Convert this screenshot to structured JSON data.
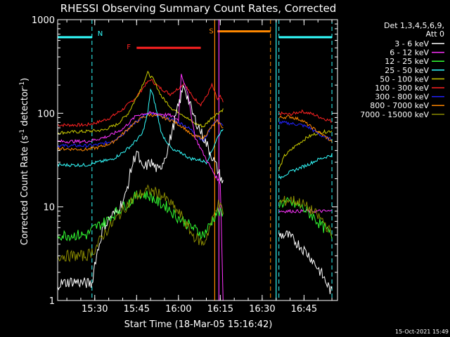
{
  "chart_data": {
    "type": "line",
    "title": "RHESSI Observing Summary Count Rates, Corrected",
    "xlabel": "Start Time (18-Mar-05 15:16:42)",
    "ylabel_main": "Corrected Count Rate (s",
    "ylabel_sup1": "-1",
    "ylabel_mid": " detector",
    "ylabel_sup2": "-1",
    "ylabel_end": ")",
    "yscale": "log",
    "ylim": [
      1,
      1000
    ],
    "xlim": [
      "15:16:42",
      "16:57:00"
    ],
    "x_ticks": [
      "15:30",
      "15:45",
      "16:00",
      "16:15",
      "16:30",
      "16:45"
    ],
    "y_ticks": [
      "1",
      "10",
      "100",
      "1000"
    ],
    "legend_title": [
      "Det 1,3,4,5,6,9,",
      "Att 0"
    ],
    "legend_position": "outside-right",
    "legend": [
      {
        "label": "3 - 6 keV",
        "color": "#ffffff"
      },
      {
        "label": "6 - 12 keV",
        "color": "#ff33ff"
      },
      {
        "label": "12 - 25 keV",
        "color": "#33ff33"
      },
      {
        "label": "25 - 50 keV",
        "color": "#33ffff"
      },
      {
        "label": "50 - 100 keV",
        "color": "#cccc00"
      },
      {
        "label": "100 - 300 keV",
        "color": "#ff2222"
      },
      {
        "label": "300 - 800 keV",
        "color": "#2222ff"
      },
      {
        "label": "800 - 7000 keV",
        "color": "#ff8800"
      },
      {
        "label": "7000 - 15000 keV",
        "color": "#888800"
      }
    ],
    "series": [
      {
        "color": "#ff2222",
        "points": [
          [
            "15:16:42",
            75
          ],
          [
            "15:27",
            75
          ],
          [
            "15:31",
            80
          ],
          [
            "15:35",
            88
          ],
          [
            "15:40",
            110
          ],
          [
            "15:45",
            150
          ],
          [
            "15:48",
            200
          ],
          [
            "15:50",
            230
          ],
          [
            "15:53",
            190
          ],
          [
            "15:57",
            160
          ],
          [
            "16:00",
            185
          ],
          [
            "16:02",
            210
          ],
          [
            "16:05",
            150
          ],
          [
            "16:08",
            125
          ],
          [
            "16:10",
            150
          ],
          [
            "16:12",
            200
          ],
          [
            "16:14",
            140
          ],
          [
            "16:15",
            150
          ],
          [
            "16:16",
            130
          ]
        ],
        "gap_after": true,
        "points2": [
          [
            "16:36",
            100
          ],
          [
            "16:40",
            97
          ],
          [
            "16:44",
            105
          ],
          [
            "16:48",
            98
          ],
          [
            "16:52",
            88
          ],
          [
            "16:55",
            82
          ]
        ]
      },
      {
        "color": "#cccc00",
        "points": [
          [
            "15:16:42",
            62
          ],
          [
            "15:27",
            64
          ],
          [
            "15:33",
            66
          ],
          [
            "15:38",
            76
          ],
          [
            "15:42",
            100
          ],
          [
            "15:46",
            170
          ],
          [
            "15:49",
            270
          ],
          [
            "15:51",
            230
          ],
          [
            "15:54",
            150
          ],
          [
            "15:58",
            110
          ],
          [
            "16:01",
            100
          ],
          [
            "16:05",
            80
          ],
          [
            "16:09",
            72
          ],
          [
            "16:12",
            90
          ],
          [
            "16:14",
            100
          ],
          [
            "16:16",
            110
          ]
        ],
        "gap_after": true,
        "points2": [
          [
            "16:36",
            25
          ],
          [
            "16:38",
            35
          ],
          [
            "16:42",
            45
          ],
          [
            "16:46",
            55
          ],
          [
            "16:50",
            62
          ],
          [
            "16:55",
            65
          ]
        ]
      },
      {
        "color": "#2222ff",
        "points": [
          [
            "15:16:42",
            45
          ],
          [
            "15:27",
            45
          ],
          [
            "15:31",
            46
          ],
          [
            "15:36",
            50
          ],
          [
            "15:40",
            60
          ],
          [
            "15:43",
            73
          ],
          [
            "15:47",
            92
          ],
          [
            "15:50",
            99
          ],
          [
            "15:54",
            93
          ],
          [
            "15:58",
            85
          ],
          [
            "16:02",
            75
          ],
          [
            "16:05",
            65
          ],
          [
            "16:09",
            50
          ],
          [
            "16:12",
            75
          ],
          [
            "16:14",
            85
          ],
          [
            "16:16",
            72
          ]
        ],
        "gap_after": true,
        "points2": [
          [
            "16:36",
            80
          ],
          [
            "16:40",
            78
          ],
          [
            "16:44",
            75
          ],
          [
            "16:47",
            70
          ],
          [
            "16:51",
            58
          ],
          [
            "16:55",
            52
          ]
        ]
      },
      {
        "color": "#ff8800",
        "points": [
          [
            "15:16:42",
            42
          ],
          [
            "15:27",
            41
          ],
          [
            "15:31",
            43
          ],
          [
            "15:36",
            48
          ],
          [
            "15:40",
            60
          ],
          [
            "15:43",
            73
          ],
          [
            "15:47",
            90
          ],
          [
            "15:50",
            97
          ],
          [
            "15:54",
            91
          ],
          [
            "15:58",
            83
          ],
          [
            "16:02",
            70
          ],
          [
            "16:05",
            57
          ],
          [
            "16:09",
            55
          ],
          [
            "16:12",
            72
          ],
          [
            "16:14",
            82
          ],
          [
            "16:16",
            70
          ]
        ],
        "gap_after": true,
        "points2": [
          [
            "16:36",
            90
          ],
          [
            "16:40",
            92
          ],
          [
            "16:44",
            85
          ],
          [
            "16:48",
            70
          ],
          [
            "16:52",
            58
          ],
          [
            "16:55",
            50
          ]
        ]
      },
      {
        "color": "#33ffff",
        "points": [
          [
            "15:16:42",
            28
          ],
          [
            "15:27",
            28
          ],
          [
            "15:31",
            30
          ],
          [
            "15:36",
            32
          ],
          [
            "15:40",
            38
          ],
          [
            "15:43",
            45
          ],
          [
            "15:47",
            60
          ],
          [
            "15:49",
            100
          ],
          [
            "15:50",
            180
          ],
          [
            "15:51",
            150
          ],
          [
            "15:54",
            60
          ],
          [
            "15:58",
            40
          ],
          [
            "16:01",
            38
          ],
          [
            "16:04",
            33
          ],
          [
            "16:07",
            32
          ],
          [
            "16:10",
            30
          ],
          [
            "16:12",
            40
          ],
          [
            "16:14",
            55
          ],
          [
            "16:16",
            70
          ]
        ],
        "gap_after": true,
        "points2": [
          [
            "16:36",
            20
          ],
          [
            "16:38",
            22
          ],
          [
            "16:42",
            25
          ],
          [
            "16:46",
            28
          ],
          [
            "16:50",
            32
          ],
          [
            "16:55",
            36
          ]
        ]
      },
      {
        "color": "#ff33ff",
        "points": [
          [
            "15:16:42",
            50
          ],
          [
            "15:27",
            50
          ],
          [
            "15:30",
            52
          ],
          [
            "15:35",
            57
          ],
          [
            "15:40",
            68
          ],
          [
            "15:45",
            95
          ],
          [
            "15:48",
            100
          ],
          [
            "15:51",
            100
          ],
          [
            "15:54",
            98
          ],
          [
            "15:57",
            95
          ],
          [
            "16:00",
            85
          ],
          [
            "16:01",
            260
          ],
          [
            "16:03",
            180
          ],
          [
            "16:06",
            55
          ],
          [
            "16:10",
            32
          ],
          [
            "16:13",
            22
          ],
          [
            "16:15",
            18
          ],
          [
            "16:16",
            1
          ]
        ],
        "gap_after": true,
        "points2": [
          [
            "16:36",
            9
          ],
          [
            "16:40",
            9
          ],
          [
            "16:44",
            9
          ],
          [
            "16:48",
            9
          ],
          [
            "16:52",
            9
          ],
          [
            "16:55",
            9
          ]
        ]
      },
      {
        "color": "#ffffff",
        "points": [
          [
            "15:16:42",
            1.5
          ],
          [
            "15:22",
            1.6
          ],
          [
            "15:29",
            1.5
          ],
          [
            "15:30",
            2.5
          ],
          [
            "15:33",
            6
          ],
          [
            "15:36",
            8
          ],
          [
            "15:38",
            9
          ],
          [
            "15:41",
            13
          ],
          [
            "15:43",
            25
          ],
          [
            "15:45",
            40
          ],
          [
            "15:47",
            25
          ],
          [
            "15:50",
            30
          ],
          [
            "15:53",
            24
          ],
          [
            "15:56",
            40
          ],
          [
            "16:00",
            120
          ],
          [
            "16:02",
            200
          ],
          [
            "16:05",
            100
          ],
          [
            "16:09",
            55
          ],
          [
            "16:12",
            35
          ],
          [
            "16:14",
            25
          ],
          [
            "16:16",
            18
          ]
        ],
        "gap_after": true,
        "points2": [
          [
            "16:36",
            5
          ],
          [
            "16:39",
            5
          ],
          [
            "16:43",
            4
          ],
          [
            "16:47",
            3
          ],
          [
            "16:51",
            2
          ],
          [
            "16:55",
            1.2
          ]
        ]
      },
      {
        "color": "#33ff33",
        "points": [
          [
            "15:16:42",
            5
          ],
          [
            "15:27",
            5
          ],
          [
            "15:30",
            6
          ],
          [
            "15:34",
            7
          ],
          [
            "15:38",
            9
          ],
          [
            "15:42",
            11
          ],
          [
            "15:46",
            14
          ],
          [
            "15:50",
            13
          ],
          [
            "15:53",
            11
          ],
          [
            "15:56",
            10
          ],
          [
            "15:59",
            8
          ],
          [
            "16:02",
            7
          ],
          [
            "16:05",
            6
          ],
          [
            "16:09",
            5
          ],
          [
            "16:12",
            7
          ],
          [
            "16:14",
            9
          ],
          [
            "16:16",
            8
          ]
        ],
        "gap_after": true,
        "points2": [
          [
            "16:36",
            11
          ],
          [
            "16:40",
            11
          ],
          [
            "16:44",
            10
          ],
          [
            "16:48",
            8
          ],
          [
            "16:52",
            6
          ],
          [
            "16:55",
            5
          ]
        ]
      },
      {
        "color": "#888800",
        "points": [
          [
            "15:16:42",
            3
          ],
          [
            "15:27",
            3
          ],
          [
            "15:30",
            3.5
          ],
          [
            "15:33",
            5
          ],
          [
            "15:37",
            7
          ],
          [
            "15:41",
            10
          ],
          [
            "15:45",
            13
          ],
          [
            "15:49",
            15
          ],
          [
            "15:53",
            14
          ],
          [
            "15:57",
            11
          ],
          [
            "16:01",
            8
          ],
          [
            "16:05",
            5
          ],
          [
            "16:09",
            4
          ],
          [
            "16:12",
            7
          ],
          [
            "16:14",
            11
          ],
          [
            "16:16",
            9
          ]
        ],
        "gap_after": true,
        "points2": [
          [
            "16:36",
            11
          ],
          [
            "16:40",
            12
          ],
          [
            "16:44",
            11
          ],
          [
            "16:48",
            9
          ],
          [
            "16:52",
            7
          ],
          [
            "16:55",
            5
          ]
        ]
      }
    ],
    "annotations": {
      "night": {
        "label": "N",
        "color": "#33ffff",
        "level": 650,
        "intervals": [
          [
            "15:16:42",
            "15:29"
          ],
          [
            "16:36",
            "16:55"
          ]
        ],
        "boundaries": [
          "15:29",
          "16:36",
          "16:55"
        ]
      },
      "flare": {
        "label": "F",
        "color": "#ff2222",
        "level": 500,
        "start": "15:45",
        "end": "16:08"
      },
      "saa": {
        "label": "S",
        "color": "#ff8800",
        "level": 750,
        "start": "16:14",
        "end": "16:33"
      },
      "vertical_solid": [
        {
          "time": "16:13",
          "color": "#ff8800"
        },
        {
          "time": "16:35",
          "color": "#33ffff"
        },
        {
          "time": "16:14:30",
          "color": "#ff33ff"
        }
      ]
    }
  },
  "footer_timestamp": "15-Oct-2021 15:49"
}
